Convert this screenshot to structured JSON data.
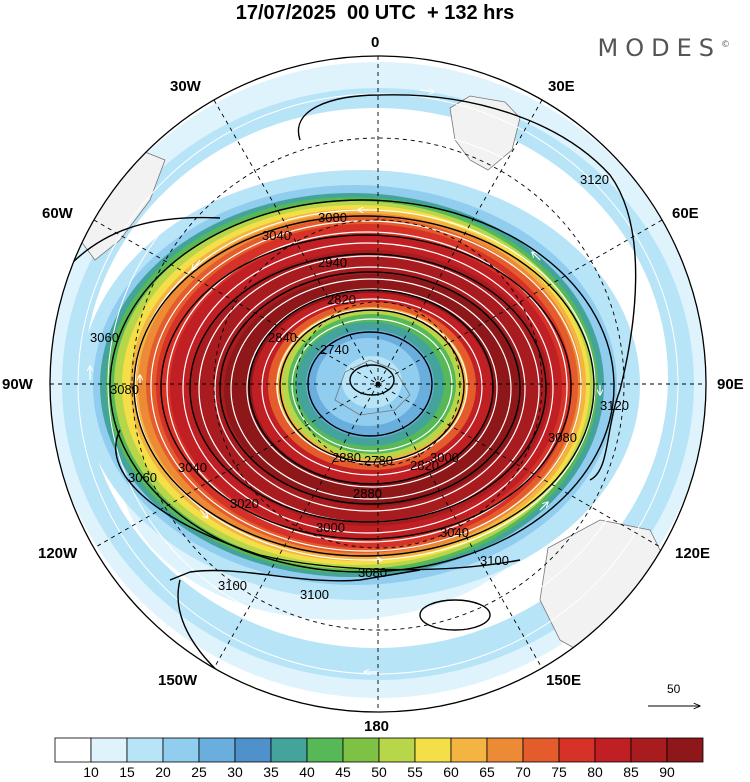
{
  "title": "17/07/2025  00 UTC  + 132 hrs",
  "brand": "MODES",
  "brand_mark": "©",
  "longitude_labels": {
    "n0": "0",
    "n30e": "30E",
    "n60e": "60E",
    "n90e": "90E",
    "n120e": "120E",
    "n150e": "150E",
    "n180": "180",
    "n150w": "150W",
    "n120w": "120W",
    "n90w": "90W",
    "n60w": "60W",
    "n30w": "30W"
  },
  "contour_labels": [
    "3080",
    "3040",
    "2940",
    "2820",
    "2840",
    "2740",
    "3080",
    "3120",
    "3120",
    "3080",
    "3000",
    "2880",
    "2780",
    "2820",
    "2880",
    "3000",
    "3040",
    "3080",
    "3100",
    "3100",
    "3100",
    "3060",
    "3060",
    "3040",
    "3020"
  ],
  "reference_vector": "50",
  "colorbar": {
    "labels": [
      "10",
      "15",
      "20",
      "25",
      "30",
      "35",
      "40",
      "45",
      "50",
      "55",
      "60",
      "65",
      "70",
      "75",
      "80",
      "85",
      "90"
    ],
    "colors": [
      "#ffffff",
      "#dff3fc",
      "#b8e4f7",
      "#90cdef",
      "#6aaede",
      "#4f92cb",
      "#44a39a",
      "#56b857",
      "#7dc244",
      "#b8d64a",
      "#f5df48",
      "#f3b441",
      "#ed8a35",
      "#e45c2c",
      "#d63227",
      "#c01f24",
      "#a81c20",
      "#8e1719"
    ]
  },
  "colors": {
    "land": "#f0f0f0",
    "contour": "#000000",
    "streamline": "#ffffff"
  }
}
